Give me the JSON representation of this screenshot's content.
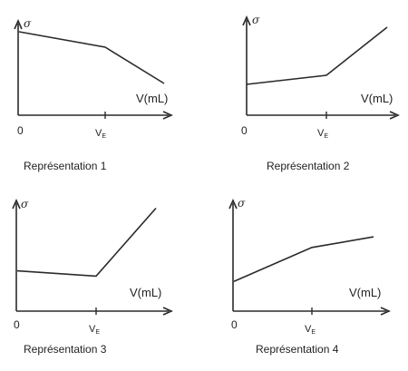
{
  "axis_labels": {
    "y": "σ",
    "x": "V(mL)",
    "origin": "0",
    "equivalence": "V",
    "equivalence_sub": "E"
  },
  "panels": [
    {
      "caption": "Représentation 1",
      "points": [
        [
          0,
          0.92
        ],
        [
          0.6,
          0.75
        ],
        [
          1,
          0.35
        ]
      ]
    },
    {
      "caption": "Représentation 2",
      "points": [
        [
          0,
          0.34
        ],
        [
          0.6,
          0.44
        ],
        [
          1,
          0.97
        ]
      ]
    },
    {
      "caption": "Représentation 3",
      "points": [
        [
          0,
          0.38
        ],
        [
          0.6,
          0.33
        ],
        [
          1,
          0.97
        ]
      ]
    },
    {
      "caption": "Représentation 4",
      "points": [
        [
          0,
          0.28
        ],
        [
          0.6,
          0.6
        ],
        [
          1,
          0.7
        ]
      ]
    }
  ]
}
